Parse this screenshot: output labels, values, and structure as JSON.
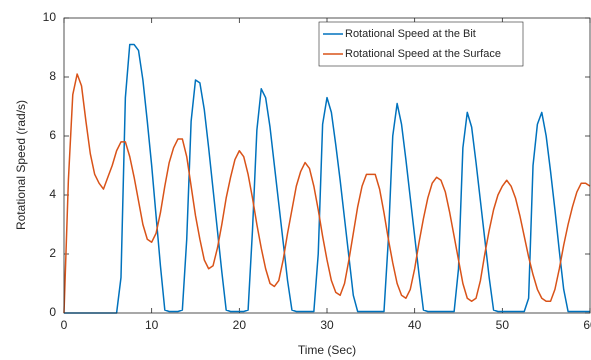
{
  "chart_data": {
    "type": "line",
    "xlabel": "Time (Sec)",
    "ylabel": "Rotational Speed (rad/s)",
    "x": [
      0,
      0.5,
      1,
      1.5,
      2,
      2.5,
      3,
      3.5,
      4,
      4.5,
      5,
      5.5,
      6,
      6.5,
      7,
      7.5,
      8,
      8.5,
      9,
      9.5,
      10,
      10.5,
      11,
      11.5,
      12,
      12.5,
      13,
      13.5,
      14,
      14.5,
      15,
      15.5,
      16,
      16.5,
      17,
      17.5,
      18,
      18.5,
      19,
      19.5,
      20,
      20.5,
      21,
      21.5,
      22,
      22.5,
      23,
      23.5,
      24,
      24.5,
      25,
      25.5,
      26,
      26.5,
      27,
      27.5,
      28,
      28.5,
      29,
      29.5,
      30,
      30.5,
      31,
      31.5,
      32,
      32.5,
      33,
      33.5,
      34,
      34.5,
      35,
      35.5,
      36,
      36.5,
      37,
      37.5,
      38,
      38.5,
      39,
      39.5,
      40,
      40.5,
      41,
      41.5,
      42,
      42.5,
      43,
      43.5,
      44,
      44.5,
      45,
      45.5,
      46,
      46.5,
      47,
      47.5,
      48,
      48.5,
      49,
      49.5,
      50,
      50.5,
      51,
      51.5,
      52,
      52.5,
      53,
      53.5,
      54,
      54.5,
      55,
      55.5,
      56,
      56.5,
      57,
      57.5,
      58,
      58.5,
      59,
      59.5,
      60
    ],
    "series": [
      {
        "name": "Rotational Speed at the Bit",
        "color": "#0072BD",
        "values": [
          0,
          0,
          0,
          0,
          0,
          0,
          0,
          0,
          0,
          0,
          0,
          0,
          0,
          1.2,
          7.3,
          9.1,
          9.1,
          8.9,
          7.9,
          6.5,
          5.0,
          3.3,
          1.6,
          0.1,
          0.05,
          0.05,
          0.05,
          0.1,
          2.5,
          6.5,
          7.9,
          7.8,
          6.9,
          5.6,
          4.2,
          2.8,
          1.4,
          0.1,
          0.05,
          0.05,
          0.05,
          0.05,
          0.1,
          2.8,
          6.2,
          7.6,
          7.3,
          6.3,
          5.0,
          3.7,
          2.4,
          1.1,
          0.1,
          0.05,
          0.05,
          0.05,
          0.05,
          0.05,
          2.0,
          6.4,
          7.3,
          6.8,
          5.7,
          4.5,
          3.2,
          1.9,
          0.6,
          0.05,
          0.05,
          0.05,
          0.05,
          0.05,
          0.05,
          0.05,
          2.5,
          6.0,
          7.1,
          6.4,
          5.2,
          3.9,
          2.6,
          1.3,
          0.1,
          0.05,
          0.05,
          0.05,
          0.05,
          0.05,
          0.05,
          0.05,
          1.5,
          5.6,
          6.8,
          6.3,
          5.1,
          3.8,
          2.5,
          1.2,
          0.1,
          0.05,
          0.05,
          0.05,
          0.05,
          0.05,
          0.05,
          0.05,
          0.5,
          5.0,
          6.4,
          6.8,
          6.0,
          4.8,
          3.5,
          2.1,
          0.8,
          0.05,
          0.05,
          0.05,
          0.05,
          0.05,
          0.05
        ]
      },
      {
        "name": "Rotational Speed at the Surface",
        "color": "#D95319",
        "values": [
          0,
          4.5,
          7.4,
          8.1,
          7.7,
          6.5,
          5.4,
          4.7,
          4.4,
          4.2,
          4.6,
          5.0,
          5.5,
          5.8,
          5.8,
          5.3,
          4.6,
          3.8,
          3.0,
          2.5,
          2.4,
          2.7,
          3.4,
          4.3,
          5.1,
          5.6,
          5.9,
          5.9,
          5.3,
          4.3,
          3.3,
          2.5,
          1.8,
          1.5,
          1.6,
          2.2,
          3.0,
          3.9,
          4.6,
          5.2,
          5.5,
          5.3,
          4.7,
          3.9,
          3.0,
          2.2,
          1.5,
          1.0,
          0.9,
          1.1,
          1.8,
          2.7,
          3.5,
          4.3,
          4.8,
          5.1,
          4.9,
          4.3,
          3.5,
          2.6,
          1.8,
          1.1,
          0.7,
          0.6,
          1.0,
          1.8,
          2.7,
          3.6,
          4.3,
          4.7,
          4.7,
          4.7,
          4.2,
          3.4,
          2.5,
          1.7,
          1.0,
          0.6,
          0.5,
          0.8,
          1.5,
          2.4,
          3.2,
          3.9,
          4.4,
          4.6,
          4.5,
          4.1,
          3.4,
          2.6,
          1.8,
          1.0,
          0.5,
          0.4,
          0.5,
          1.1,
          2.0,
          2.8,
          3.5,
          4.0,
          4.3,
          4.5,
          4.3,
          3.9,
          3.3,
          2.6,
          1.9,
          1.3,
          0.8,
          0.5,
          0.4,
          0.4,
          0.8,
          1.5,
          2.3,
          3.0,
          3.6,
          4.1,
          4.4,
          4.4,
          4.3
        ]
      }
    ],
    "xlim": [
      0,
      60
    ],
    "xticks": [
      0,
      10,
      20,
      30,
      40,
      50,
      60
    ],
    "ylim": [
      0,
      10
    ],
    "yticks": [
      0,
      2,
      4,
      6,
      8,
      10
    ],
    "grid": false,
    "legend": "upper right"
  }
}
